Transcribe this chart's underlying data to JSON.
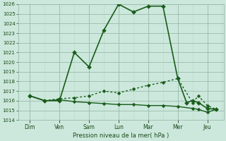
{
  "xlabel": "Pression niveau de la mer( hPa )",
  "ylim": [
    1014,
    1026
  ],
  "ytick_min": 1014,
  "ytick_max": 1026,
  "days": [
    "Dim",
    "Ven",
    "Sam",
    "Lun",
    "Mar",
    "Mer",
    "Jeu"
  ],
  "day_x": [
    0,
    1,
    2,
    3,
    4,
    5,
    6
  ],
  "line1_solid": {
    "x": [
      0,
      0.5,
      1,
      1.5,
      2,
      2.5,
      3,
      3.5,
      4,
      4.5,
      5,
      5.3,
      5.5,
      5.7,
      6,
      6.3
    ],
    "y": [
      1016.5,
      1016.0,
      1016.0,
      1021.0,
      1019.5,
      1023.3,
      1026.0,
      1025.2,
      1025.8,
      1025.8,
      1018.3,
      1015.8,
      1016.0,
      1015.8,
      1015.2,
      1015.1
    ],
    "color": "#1a5c1a",
    "lw": 1.2
  },
  "line2_dotted": {
    "x": [
      0,
      0.5,
      1,
      1.5,
      2,
      2.5,
      3,
      3.5,
      4,
      4.5,
      5,
      5.5,
      5.7,
      6,
      6.3
    ],
    "y": [
      1016.5,
      1016.0,
      1016.2,
      1016.3,
      1016.5,
      1017.0,
      1016.8,
      1017.2,
      1017.6,
      1017.9,
      1018.3,
      1015.8,
      1016.5,
      1015.5,
      1015.1
    ],
    "color": "#1a5c1a",
    "lw": 1.0
  },
  "line3_flat": {
    "x": [
      0,
      0.5,
      1,
      1.5,
      2,
      2.5,
      3,
      3.5,
      4,
      4.5,
      5,
      5.5,
      5.7,
      6,
      6.3
    ],
    "y": [
      1016.5,
      1016.0,
      1016.1,
      1015.9,
      1015.8,
      1015.7,
      1015.6,
      1015.6,
      1015.5,
      1015.5,
      1015.4,
      1015.2,
      1015.1,
      1014.8,
      1015.1
    ],
    "color": "#1a5c1a",
    "lw": 1.0
  },
  "bg_color": "#cce8dc",
  "grid_major_color": "#99bbaa",
  "grid_minor_color": "#b8d8c8",
  "tick_color": "#1a4a1a",
  "label_color": "#1a4a1a",
  "marker": "D",
  "marker_size": 2.5,
  "marker_size_main": 3.0
}
